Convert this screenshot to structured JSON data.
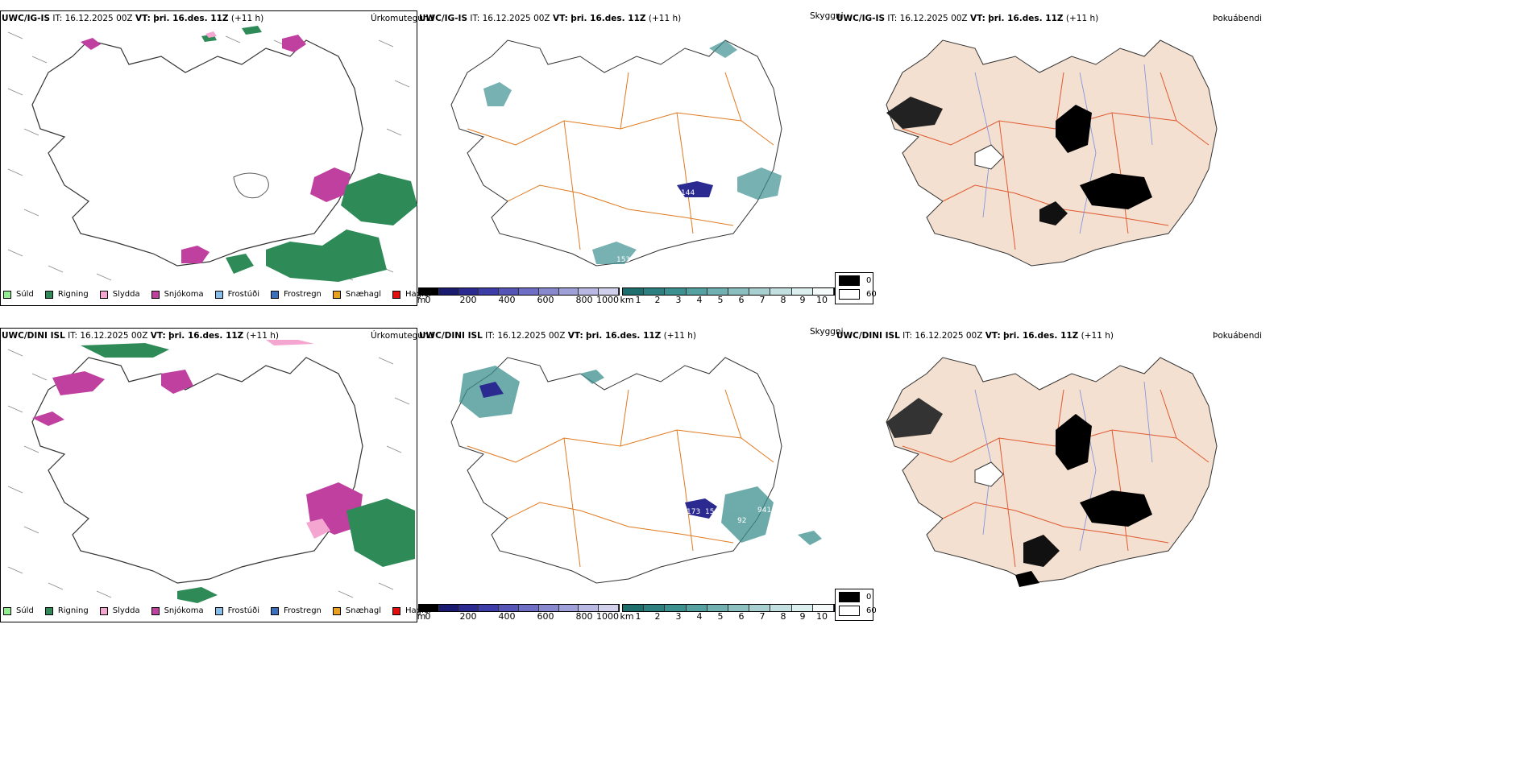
{
  "rows": [
    {
      "model": "UWC/IG-IS",
      "it_label": "IT:",
      "it_value": "16.12.2025 00Z",
      "vt_label": "VT:",
      "vt_value": "þri. 16.des. 11Z",
      "lead": "(+11 h)"
    },
    {
      "model": "UWC/DINI ISL",
      "it_label": "IT:",
      "it_value": "16.12.2025 00Z",
      "vt_label": "VT:",
      "vt_value": "þri. 16.des. 11Z",
      "lead": "(+11 h)"
    }
  ],
  "panel_titles": {
    "precip_type": "Úrkomutegund",
    "visibility": "Skyggni",
    "fog": "Þokuábendi"
  },
  "precip_legend": [
    {
      "label": "Súld",
      "color": "#90ee90"
    },
    {
      "label": "Rigning",
      "color": "#2e8b57"
    },
    {
      "label": "Slydda",
      "color": "#f4a6d0"
    },
    {
      "label": "Snjókoma",
      "color": "#c040a0"
    },
    {
      "label": "Frostúði",
      "color": "#87bde8"
    },
    {
      "label": "Frostregn",
      "color": "#3a70c0"
    },
    {
      "label": "Snæhagl",
      "color": "#e8a020"
    },
    {
      "label": "Haglél",
      "color": "#e01010"
    }
  ],
  "cloud_base_bar": {
    "unit": "m",
    "ticks": [
      "0",
      "200",
      "400",
      "600",
      "800",
      "1000"
    ],
    "colors": [
      "#000000",
      "#1a1a70",
      "#2a2a90",
      "#3d3da8",
      "#5555b8",
      "#6e6ec4",
      "#8888cf",
      "#a0a0d8",
      "#b8b8e2",
      "#d0d0ec"
    ]
  },
  "visibility_bar": {
    "unit": "km",
    "ticks": [
      "1",
      "2",
      "3",
      "4",
      "5",
      "6",
      "7",
      "8",
      "9",
      "10"
    ],
    "colors": [
      "#1f6e6e",
      "#2e8080",
      "#3d9090",
      "#55a0a0",
      "#70b0b0",
      "#8cc0c0",
      "#a8d0d0",
      "#c2e0e0",
      "#dcefef",
      "#f4fafa"
    ]
  },
  "fog_legend": [
    {
      "label": "0",
      "color": "#000000"
    },
    {
      "label": "60",
      "color": "#ffffff"
    }
  ],
  "map_annotations": {
    "row1_vis": [
      "144",
      "153"
    ],
    "row2_vis": [
      "173",
      "15",
      "941",
      "92"
    ]
  },
  "colors": {
    "coast": "#333333",
    "roads": "#e07a20",
    "land_fog": "#f3e0d0",
    "rivers": "#7a8ee0"
  }
}
